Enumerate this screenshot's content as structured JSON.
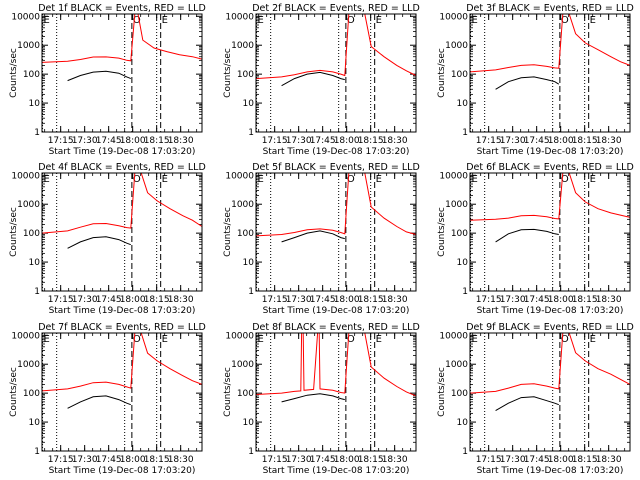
{
  "time_range": [
    "17:03:20",
    "18:43:20"
  ],
  "x_ticks": [
    "17:15",
    "17:30",
    "17:45",
    "18:00",
    "18:15",
    "18:30"
  ],
  "xlabel": "Start Time (19-Dec-08 17:03:20)",
  "ylabel": "Counts/sec",
  "y_ticks": [
    "1",
    "10",
    "100",
    "1000",
    "10000"
  ],
  "ylim": [
    1,
    12000
  ],
  "yscale": "log",
  "colors": {
    "events": "#000000",
    "lld": "#ff0000",
    "axis": "#000000"
  },
  "markers": [
    {
      "label": "E",
      "time": "17:03:40",
      "style": "dotted"
    },
    {
      "label": "O",
      "time": "17:59:30",
      "style": "dashed"
    },
    {
      "label": "E",
      "time": "18:17:30",
      "style": "dashed"
    },
    {
      "label": "",
      "time": "17:12:30",
      "style": "dotted"
    },
    {
      "label": "",
      "time": "17:55:00",
      "style": "dotted"
    },
    {
      "label": "",
      "time": "18:15:00",
      "style": "dotted"
    }
  ],
  "chart_data": [
    {
      "type": "line",
      "title": "Det 1f BLACK = Events, RED = LLD",
      "series": [
        {
          "values": [
            [
              0.16,
              60
            ],
            [
              0.24,
              90
            ],
            [
              0.32,
              118
            ],
            [
              0.4,
              125
            ],
            [
              0.48,
              108
            ],
            [
              0.53,
              80
            ],
            [
              0.555,
              70
            ]
          ]
        },
        {
          "values": [
            [
              0.0,
              255
            ],
            [
              0.16,
              280
            ],
            [
              0.24,
              320
            ],
            [
              0.32,
              390
            ],
            [
              0.4,
              395
            ],
            [
              0.48,
              360
            ],
            [
              0.53,
              300
            ],
            [
              0.555,
              290
            ],
            [
              0.58,
              20000
            ],
            [
              0.6,
              20000
            ],
            [
              0.63,
              1500
            ],
            [
              0.7,
              800
            ],
            [
              0.78,
              600
            ],
            [
              0.86,
              470
            ],
            [
              0.94,
              400
            ],
            [
              1.0,
              330
            ]
          ]
        }
      ]
    },
    {
      "type": "line",
      "title": "Det 2f BLACK = Events, RED = LLD",
      "series": [
        {
          "values": [
            [
              0.16,
              40
            ],
            [
              0.24,
              70
            ],
            [
              0.32,
              100
            ],
            [
              0.4,
              115
            ],
            [
              0.48,
              90
            ],
            [
              0.53,
              70
            ],
            [
              0.555,
              65
            ]
          ]
        },
        {
          "values": [
            [
              0.0,
              70
            ],
            [
              0.16,
              80
            ],
            [
              0.24,
              95
            ],
            [
              0.32,
              120
            ],
            [
              0.4,
              135
            ],
            [
              0.48,
              120
            ],
            [
              0.53,
              100
            ],
            [
              0.555,
              90
            ],
            [
              0.58,
              20000
            ],
            [
              0.68,
              20000
            ],
            [
              0.72,
              900
            ],
            [
              0.8,
              400
            ],
            [
              0.88,
              200
            ],
            [
              0.94,
              130
            ],
            [
              1.0,
              90
            ]
          ]
        }
      ]
    },
    {
      "type": "line",
      "title": "Det 3f BLACK = Events, RED = LLD",
      "series": [
        {
          "values": [
            [
              0.16,
              30
            ],
            [
              0.24,
              55
            ],
            [
              0.32,
              75
            ],
            [
              0.4,
              80
            ],
            [
              0.48,
              65
            ],
            [
              0.53,
              55
            ],
            [
              0.555,
              45
            ]
          ]
        },
        {
          "values": [
            [
              0.0,
              120
            ],
            [
              0.16,
              140
            ],
            [
              0.24,
              170
            ],
            [
              0.32,
              200
            ],
            [
              0.4,
              210
            ],
            [
              0.48,
              185
            ],
            [
              0.53,
              165
            ],
            [
              0.555,
              160
            ],
            [
              0.58,
              20000
            ],
            [
              0.62,
              20000
            ],
            [
              0.66,
              2500
            ],
            [
              0.72,
              1200
            ],
            [
              0.8,
              700
            ],
            [
              0.88,
              400
            ],
            [
              0.94,
              270
            ],
            [
              1.0,
              200
            ]
          ]
        }
      ]
    },
    {
      "type": "line",
      "title": "Det 4f BLACK = Events, RED = LLD",
      "series": [
        {
          "values": [
            [
              0.16,
              30
            ],
            [
              0.24,
              50
            ],
            [
              0.32,
              70
            ],
            [
              0.4,
              75
            ],
            [
              0.48,
              60
            ],
            [
              0.53,
              45
            ],
            [
              0.555,
              40
            ]
          ]
        },
        {
          "values": [
            [
              0.0,
              100
            ],
            [
              0.16,
              120
            ],
            [
              0.24,
              160
            ],
            [
              0.32,
              210
            ],
            [
              0.4,
              215
            ],
            [
              0.48,
              180
            ],
            [
              0.53,
              155
            ],
            [
              0.555,
              150
            ],
            [
              0.58,
              20000
            ],
            [
              0.62,
              20000
            ],
            [
              0.66,
              2500
            ],
            [
              0.72,
              1300
            ],
            [
              0.8,
              700
            ],
            [
              0.88,
              400
            ],
            [
              0.94,
              280
            ],
            [
              1.0,
              170
            ]
          ]
        }
      ]
    },
    {
      "type": "line",
      "title": "Det 5f BLACK = Events, RED = LLD",
      "series": [
        {
          "values": [
            [
              0.16,
              50
            ],
            [
              0.24,
              70
            ],
            [
              0.32,
              100
            ],
            [
              0.4,
              120
            ],
            [
              0.48,
              95
            ],
            [
              0.53,
              70
            ],
            [
              0.555,
              65
            ]
          ]
        },
        {
          "values": [
            [
              0.0,
              80
            ],
            [
              0.16,
              90
            ],
            [
              0.24,
              105
            ],
            [
              0.32,
              130
            ],
            [
              0.4,
              140
            ],
            [
              0.48,
              125
            ],
            [
              0.53,
              105
            ],
            [
              0.555,
              95
            ],
            [
              0.58,
              20000
            ],
            [
              0.68,
              20000
            ],
            [
              0.72,
              800
            ],
            [
              0.8,
              330
            ],
            [
              0.88,
              170
            ],
            [
              0.94,
              110
            ],
            [
              1.0,
              90
            ]
          ]
        }
      ]
    },
    {
      "type": "line",
      "title": "Det 6f BLACK = Events, RED = LLD",
      "series": [
        {
          "values": [
            [
              0.16,
              50
            ],
            [
              0.24,
              95
            ],
            [
              0.32,
              130
            ],
            [
              0.4,
              135
            ],
            [
              0.48,
              115
            ],
            [
              0.53,
              95
            ],
            [
              0.555,
              90
            ]
          ]
        },
        {
          "values": [
            [
              0.0,
              280
            ],
            [
              0.16,
              300
            ],
            [
              0.24,
              330
            ],
            [
              0.32,
              400
            ],
            [
              0.4,
              410
            ],
            [
              0.48,
              370
            ],
            [
              0.53,
              320
            ],
            [
              0.555,
              310
            ],
            [
              0.58,
              20000
            ],
            [
              0.62,
              20000
            ],
            [
              0.66,
              2500
            ],
            [
              0.72,
              1200
            ],
            [
              0.8,
              700
            ],
            [
              0.88,
              500
            ],
            [
              0.94,
              420
            ],
            [
              1.0,
              350
            ]
          ]
        }
      ]
    },
    {
      "type": "line",
      "title": "Det 7f BLACK = Events, RED = LLD",
      "series": [
        {
          "values": [
            [
              0.16,
              30
            ],
            [
              0.24,
              50
            ],
            [
              0.32,
              75
            ],
            [
              0.4,
              80
            ],
            [
              0.48,
              60
            ],
            [
              0.53,
              45
            ],
            [
              0.555,
              40
            ]
          ]
        },
        {
          "values": [
            [
              0.0,
              120
            ],
            [
              0.16,
              140
            ],
            [
              0.24,
              175
            ],
            [
              0.32,
              230
            ],
            [
              0.4,
              240
            ],
            [
              0.48,
              200
            ],
            [
              0.53,
              165
            ],
            [
              0.555,
              150
            ],
            [
              0.58,
              20000
            ],
            [
              0.62,
              20000
            ],
            [
              0.66,
              2400
            ],
            [
              0.72,
              1300
            ],
            [
              0.8,
              700
            ],
            [
              0.88,
              400
            ],
            [
              0.94,
              270
            ],
            [
              1.0,
              200
            ]
          ]
        }
      ]
    },
    {
      "type": "line",
      "title": "Det 8f BLACK = Events, RED = LLD",
      "series": [
        {
          "values": [
            [
              0.16,
              50
            ],
            [
              0.24,
              65
            ],
            [
              0.32,
              85
            ],
            [
              0.4,
              95
            ],
            [
              0.48,
              80
            ],
            [
              0.53,
              65
            ],
            [
              0.555,
              60
            ]
          ]
        },
        {
          "values": [
            [
              0.0,
              90
            ],
            [
              0.16,
              100
            ],
            [
              0.24,
              115
            ],
            [
              0.28,
              120
            ],
            [
              0.285,
              20000
            ],
            [
              0.295,
              20000
            ],
            [
              0.3,
              125
            ],
            [
              0.36,
              135
            ],
            [
              0.385,
              20000
            ],
            [
              0.395,
              20000
            ],
            [
              0.4,
              140
            ],
            [
              0.48,
              125
            ],
            [
              0.53,
              105
            ],
            [
              0.555,
              100
            ],
            [
              0.58,
              20000
            ],
            [
              0.68,
              20000
            ],
            [
              0.72,
              800
            ],
            [
              0.8,
              330
            ],
            [
              0.88,
              170
            ],
            [
              0.94,
              110
            ],
            [
              1.0,
              80
            ]
          ]
        }
      ]
    },
    {
      "type": "line",
      "title": "Det 9f BLACK = Events, RED = LLD",
      "series": [
        {
          "values": [
            [
              0.16,
              25
            ],
            [
              0.24,
              45
            ],
            [
              0.32,
              70
            ],
            [
              0.4,
              75
            ],
            [
              0.48,
              55
            ],
            [
              0.53,
              45
            ],
            [
              0.555,
              40
            ]
          ]
        },
        {
          "values": [
            [
              0.0,
              100
            ],
            [
              0.16,
              115
            ],
            [
              0.24,
              150
            ],
            [
              0.32,
              200
            ],
            [
              0.4,
              210
            ],
            [
              0.48,
              175
            ],
            [
              0.53,
              150
            ],
            [
              0.555,
              140
            ],
            [
              0.58,
              20000
            ],
            [
              0.62,
              20000
            ],
            [
              0.66,
              2500
            ],
            [
              0.72,
              1300
            ],
            [
              0.8,
              700
            ],
            [
              0.88,
              450
            ],
            [
              0.94,
              300
            ],
            [
              1.0,
              200
            ]
          ]
        }
      ]
    }
  ]
}
